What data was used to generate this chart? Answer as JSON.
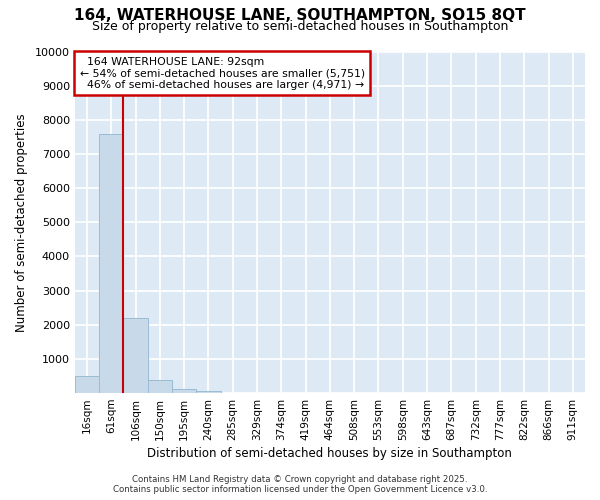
{
  "title_line1": "164, WATERHOUSE LANE, SOUTHAMPTON, SO15 8QT",
  "title_line2": "Size of property relative to semi-detached houses in Southampton",
  "xlabel": "Distribution of semi-detached houses by size in Southampton",
  "ylabel": "Number of semi-detached properties",
  "bar_color": "#c8daea",
  "bar_edge_color": "#9abcd4",
  "bg_color": "#ddeaf5",
  "grid_color": "#ffffff",
  "property_line_color": "#cc0000",
  "annotation_box_color": "#cc0000",
  "categories": [
    "16sqm",
    "61sqm",
    "106sqm",
    "150sqm",
    "195sqm",
    "240sqm",
    "285sqm",
    "329sqm",
    "374sqm",
    "419sqm",
    "464sqm",
    "508sqm",
    "553sqm",
    "598sqm",
    "643sqm",
    "687sqm",
    "732sqm",
    "777sqm",
    "822sqm",
    "866sqm",
    "911sqm"
  ],
  "values": [
    500,
    7580,
    2200,
    370,
    120,
    70,
    0,
    0,
    0,
    0,
    0,
    0,
    0,
    0,
    0,
    0,
    0,
    0,
    0,
    0,
    0
  ],
  "property_label": "164 WATERHOUSE LANE: 92sqm",
  "pct_smaller": 54,
  "pct_larger": 46,
  "n_smaller": 5751,
  "n_larger": 4971,
  "property_bar_index": 1,
  "ylim": [
    0,
    10000
  ],
  "yticks": [
    0,
    1000,
    2000,
    3000,
    4000,
    5000,
    6000,
    7000,
    8000,
    9000,
    10000
  ],
  "footer_line1": "Contains HM Land Registry data © Crown copyright and database right 2025.",
  "footer_line2": "Contains public sector information licensed under the Open Government Licence v3.0."
}
